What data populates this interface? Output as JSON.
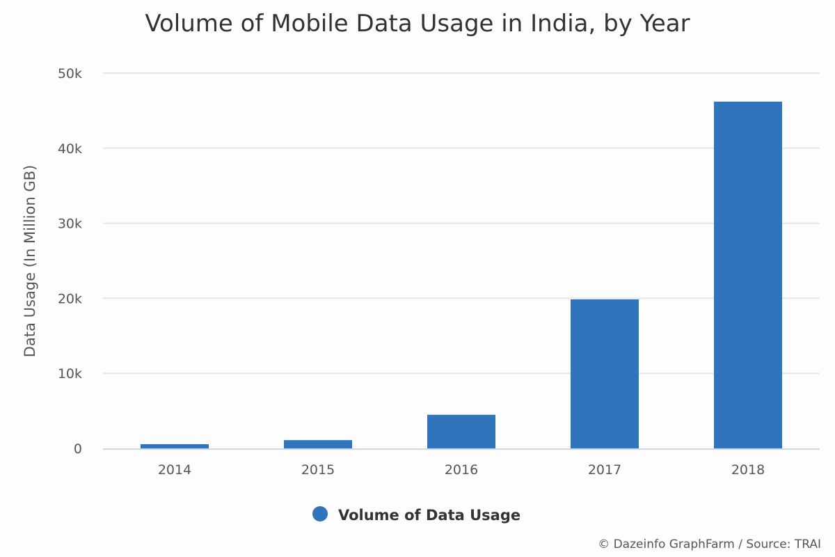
{
  "chart_data": {
    "type": "bar",
    "title": "Volume of Mobile Data Usage in India, by Year",
    "xlabel": "",
    "ylabel": "Data Usage (In Million GB)",
    "categories": [
      "2014",
      "2015",
      "2016",
      "2017",
      "2018"
    ],
    "series": [
      {
        "name": "Volume of Data Usage",
        "values": [
          560,
          1100,
          4480,
          19850,
          46200
        ],
        "color": "#3075bb"
      }
    ],
    "ylim": [
      0,
      50000
    ],
    "yticks": [
      0,
      10000,
      20000,
      30000,
      40000,
      50000
    ],
    "ytick_labels": [
      "0",
      "10k",
      "20k",
      "30k",
      "40k",
      "50k"
    ],
    "grid": true,
    "legend": "bottom-center"
  },
  "credit": "© Dazeinfo GraphFarm / Source: TRAI"
}
